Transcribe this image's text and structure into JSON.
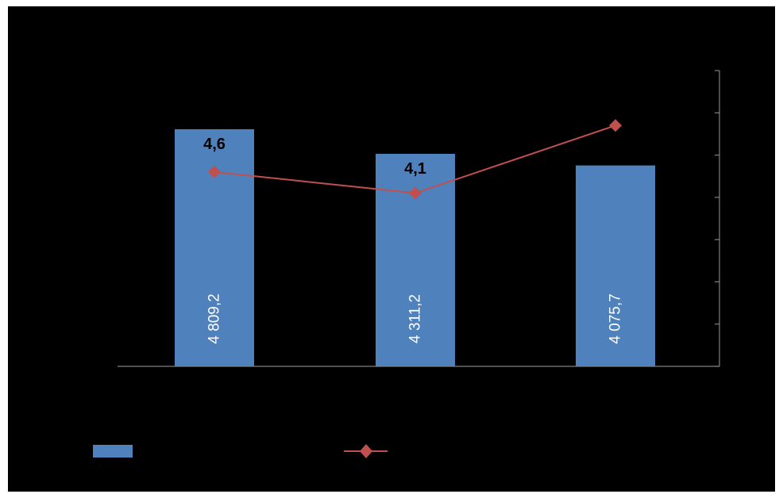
{
  "chart_data": {
    "type": "bar",
    "categories": [
      "",
      "",
      ""
    ],
    "series": [
      {
        "kind": "bar",
        "values": [
          4809.2,
          4311.2,
          4075.7
        ],
        "value_labels": [
          "4 809,2",
          "4 311,2",
          "4 075,7"
        ],
        "color": "#4F81BD"
      },
      {
        "kind": "line",
        "values": [
          4.6,
          4.1,
          5.7
        ],
        "value_labels": [
          "4,6",
          "4,1",
          ""
        ],
        "color": "#C0504D"
      }
    ],
    "y_left_range": [
      0,
      6000
    ],
    "y_right_range": [
      0,
      7
    ],
    "right_axis_ticks": 7,
    "grid": false,
    "legend": "bottom",
    "background": "#000000"
  }
}
